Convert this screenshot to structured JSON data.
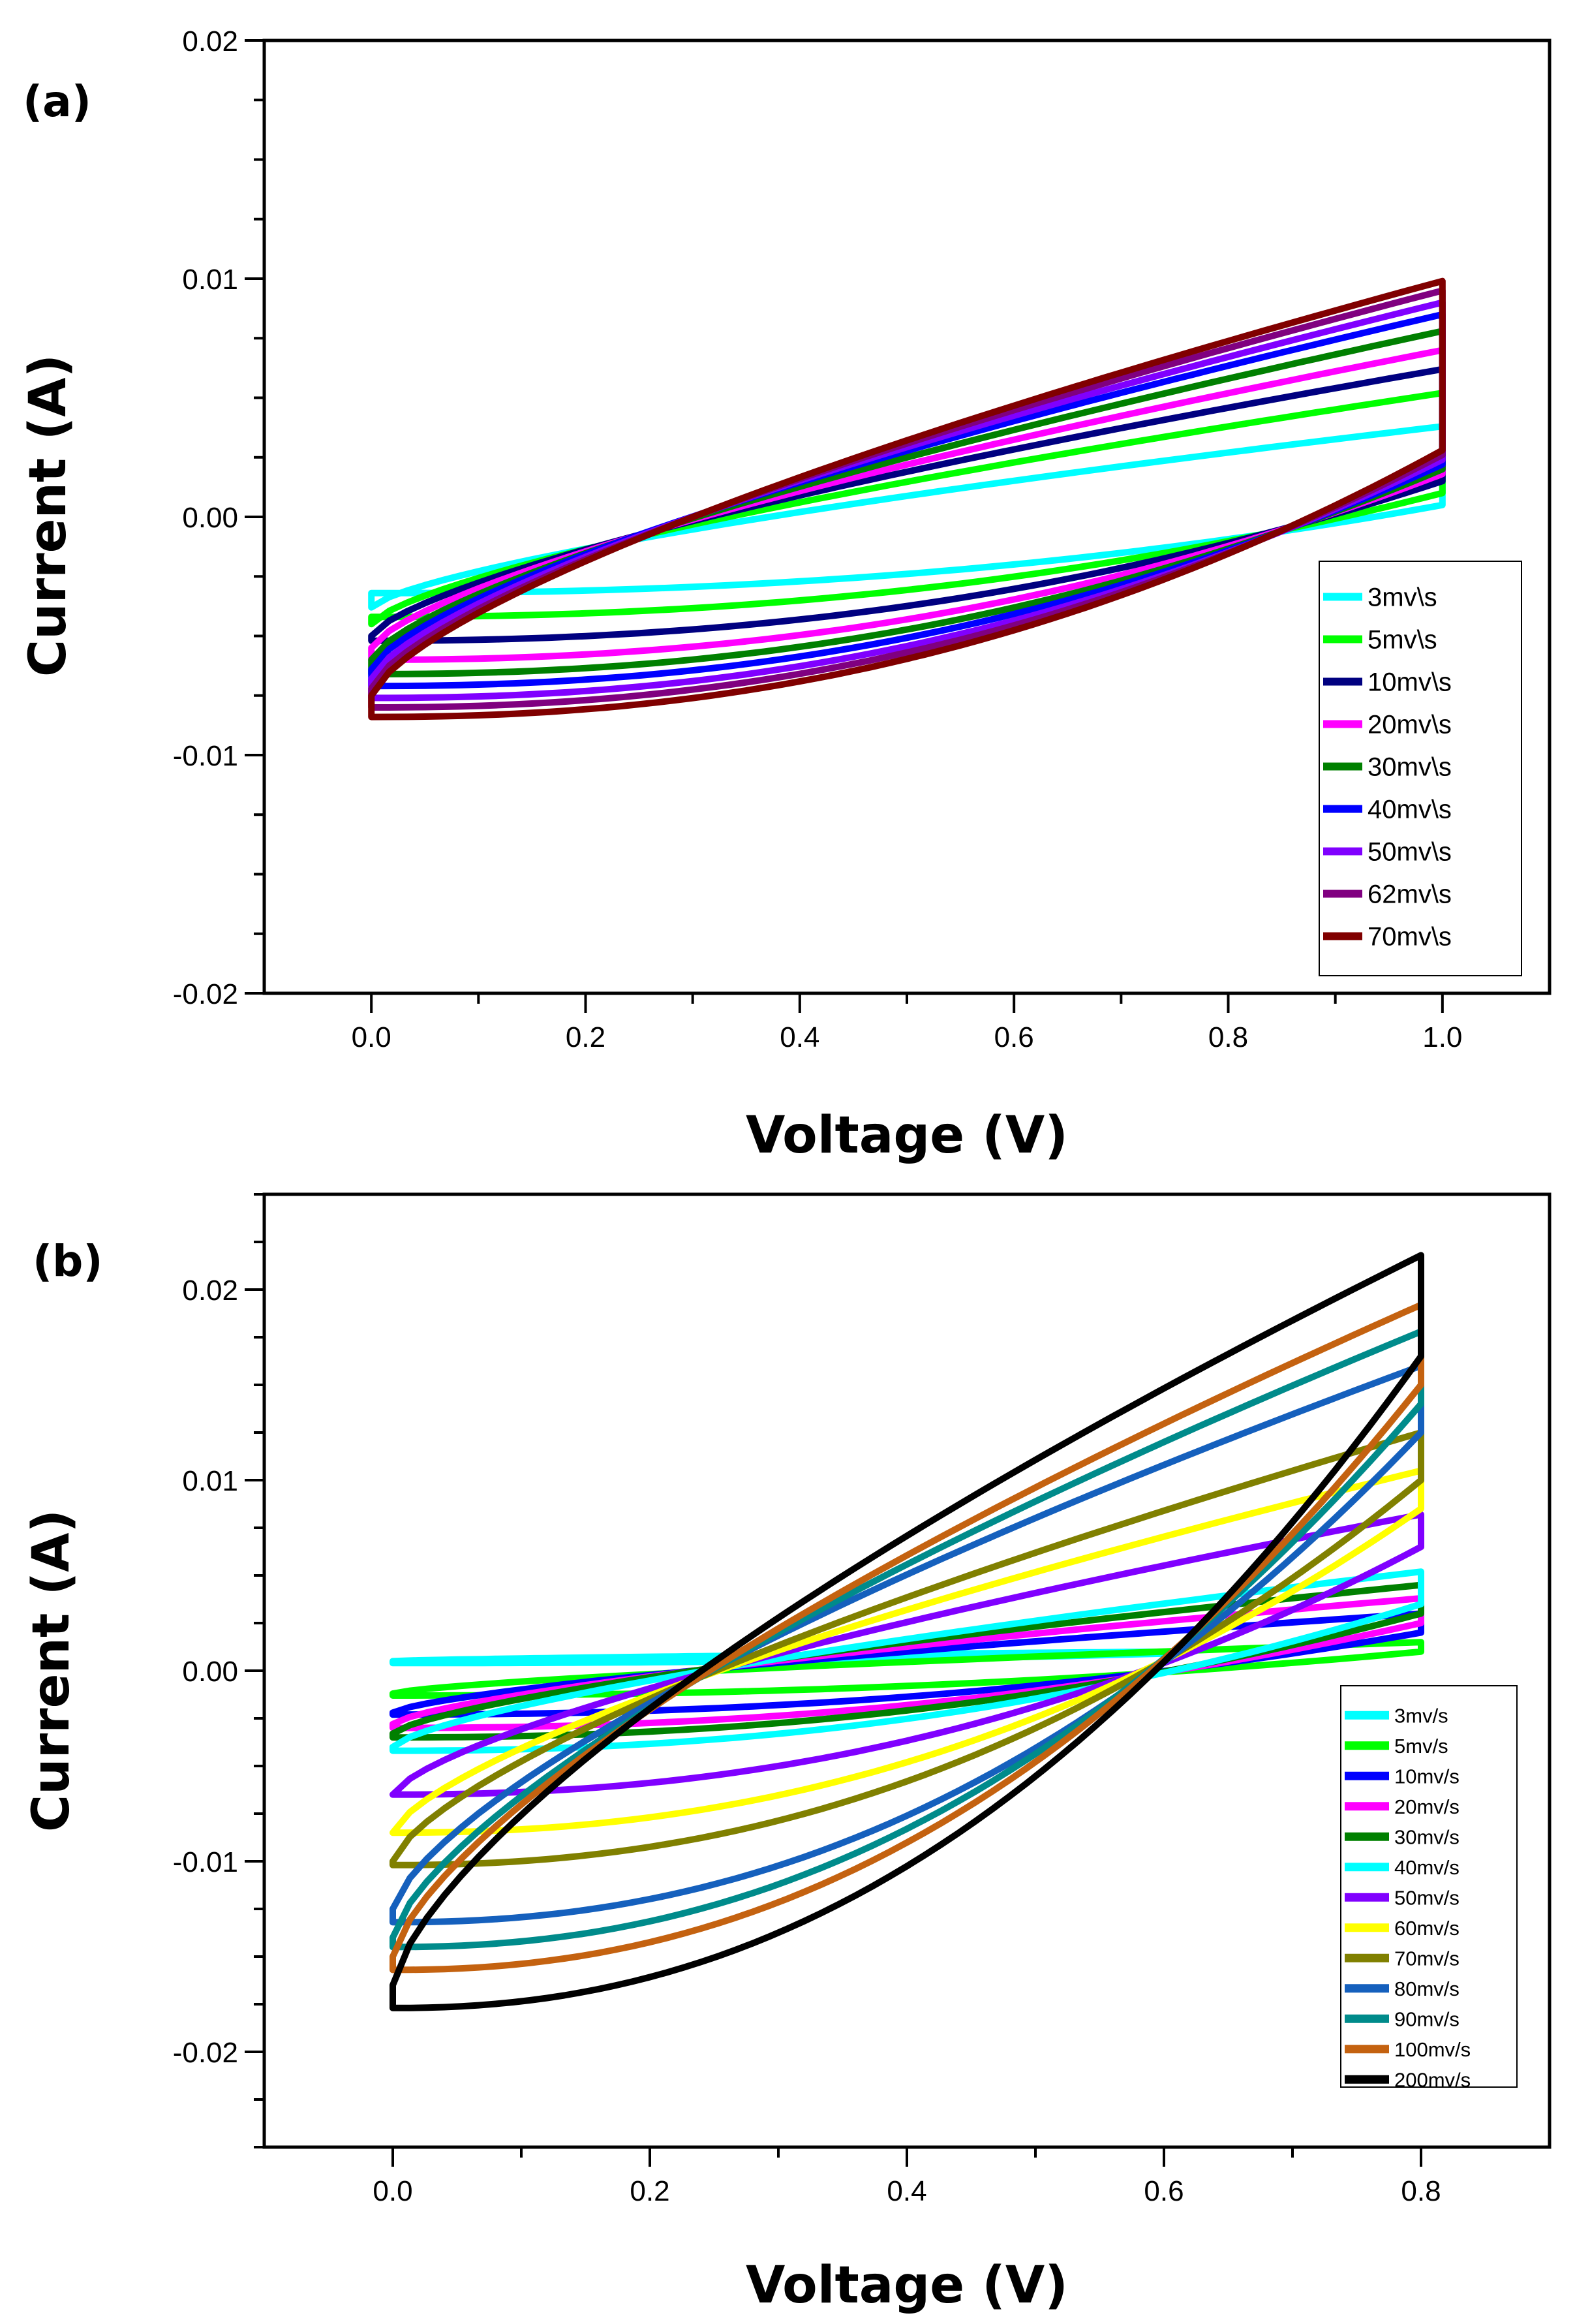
{
  "chart_data": [
    {
      "type": "line",
      "panel_label": "(a)",
      "xlabel": "Voltage (V)",
      "ylabel": "Current (A)",
      "xlim": [
        -0.1,
        1.1
      ],
      "ylim": [
        -0.02,
        0.02
      ],
      "x_ticks": [
        0.0,
        0.2,
        0.4,
        0.6,
        0.8,
        1.0
      ],
      "x_tick_labels": [
        "0.0",
        "0.2",
        "0.4",
        "0.6",
        "0.8",
        "1.0"
      ],
      "y_ticks": [
        -0.02,
        -0.01,
        0.0,
        0.01,
        0.02
      ],
      "y_tick_labels": [
        "-0.02",
        "-0.01",
        "0.00",
        "0.01",
        "0.02"
      ],
      "grid": false,
      "legend_position": "right",
      "series": [
        {
          "name": "3mv\\s",
          "color": "#00FFFF",
          "v_min": 0.0,
          "v_max": 1.0,
          "upper_start": -0.0038,
          "upper_end": 0.0038,
          "lower_start": -0.0032,
          "lower_end": 0.0005
        },
        {
          "name": "5mv\\s",
          "color": "#00FF00",
          "v_min": 0.0,
          "v_max": 1.0,
          "upper_start": -0.0045,
          "upper_end": 0.0052,
          "lower_start": -0.0042,
          "lower_end": 0.001
        },
        {
          "name": "10mv\\s",
          "color": "#000080",
          "v_min": 0.0,
          "v_max": 1.0,
          "upper_start": -0.005,
          "upper_end": 0.0062,
          "lower_start": -0.0052,
          "lower_end": 0.0015
        },
        {
          "name": "20mv\\s",
          "color": "#FF00FF",
          "v_min": 0.0,
          "v_max": 1.0,
          "upper_start": -0.0055,
          "upper_end": 0.007,
          "lower_start": -0.006,
          "lower_end": 0.0018
        },
        {
          "name": "30mv\\s",
          "color": "#008000",
          "v_min": 0.0,
          "v_max": 1.0,
          "upper_start": -0.006,
          "upper_end": 0.0078,
          "lower_start": -0.0066,
          "lower_end": 0.002
        },
        {
          "name": "40mv\\s",
          "color": "#0000FF",
          "v_min": 0.0,
          "v_max": 1.0,
          "upper_start": -0.0064,
          "upper_end": 0.0085,
          "lower_start": -0.0071,
          "lower_end": 0.0022
        },
        {
          "name": "50mv\\s",
          "color": "#8000FF",
          "v_min": 0.0,
          "v_max": 1.0,
          "upper_start": -0.0068,
          "upper_end": 0.009,
          "lower_start": -0.0076,
          "lower_end": 0.0024
        },
        {
          "name": "62mv\\s",
          "color": "#800080",
          "v_min": 0.0,
          "v_max": 1.0,
          "upper_start": -0.0072,
          "upper_end": 0.0095,
          "lower_start": -0.008,
          "lower_end": 0.0026
        },
        {
          "name": "70mv\\s",
          "color": "#800000",
          "v_min": 0.0,
          "v_max": 1.0,
          "upper_start": -0.0075,
          "upper_end": 0.0099,
          "lower_start": -0.0084,
          "lower_end": 0.0028
        }
      ]
    },
    {
      "type": "line",
      "panel_label": "(b)",
      "xlabel": "Voltage (V)",
      "ylabel": "Current (A)",
      "xlim": [
        -0.1,
        0.9
      ],
      "ylim": [
        -0.025,
        0.025
      ],
      "x_ticks": [
        0.0,
        0.2,
        0.4,
        0.6,
        0.8
      ],
      "x_tick_labels": [
        "0.0",
        "0.2",
        "0.4",
        "0.6",
        "0.8"
      ],
      "y_ticks": [
        -0.02,
        -0.01,
        0.0,
        0.01,
        0.02
      ],
      "y_tick_labels": [
        "-0.02",
        "-0.01",
        "0.00",
        "0.01",
        "0.02"
      ],
      "grid": false,
      "legend_position": "right",
      "series": [
        {
          "name": "3mv/s",
          "color": "#00FFFF",
          "v_min": 0.0,
          "v_max": 0.6,
          "upper_start": 0.0005,
          "upper_end": 0.001,
          "lower_start": 0.0004,
          "lower_end": 0.0009
        },
        {
          "name": "5mv/s",
          "color": "#00FF00",
          "v_min": 0.0,
          "v_max": 0.8,
          "upper_start": -0.0012,
          "upper_end": 0.0015,
          "lower_start": -0.0013,
          "lower_end": 0.001
        },
        {
          "name": "10mv/s",
          "color": "#0000FF",
          "v_min": 0.0,
          "v_max": 0.8,
          "upper_start": -0.0022,
          "upper_end": 0.003,
          "lower_start": -0.0023,
          "lower_end": 0.002
        },
        {
          "name": "20mv/s",
          "color": "#FF00FF",
          "v_min": 0.0,
          "v_max": 0.8,
          "upper_start": -0.0028,
          "upper_end": 0.0038,
          "lower_start": -0.003,
          "lower_end": 0.0025
        },
        {
          "name": "30mv/s",
          "color": "#008000",
          "v_min": 0.0,
          "v_max": 0.8,
          "upper_start": -0.0033,
          "upper_end": 0.0045,
          "lower_start": -0.0035,
          "lower_end": 0.003
        },
        {
          "name": "40mv/s",
          "color": "#00FFFF",
          "v_min": 0.0,
          "v_max": 0.8,
          "upper_start": -0.004,
          "upper_end": 0.0052,
          "lower_start": -0.0042,
          "lower_end": 0.0035
        },
        {
          "name": "50mv/s",
          "color": "#8000FF",
          "v_min": 0.0,
          "v_max": 0.8,
          "upper_start": -0.0065,
          "upper_end": 0.0082,
          "lower_start": -0.0065,
          "lower_end": 0.0065
        },
        {
          "name": "60mv/s",
          "color": "#FFFF00",
          "v_min": 0.0,
          "v_max": 0.8,
          "upper_start": -0.0085,
          "upper_end": 0.0105,
          "lower_start": -0.0085,
          "lower_end": 0.0085
        },
        {
          "name": "70mv/s",
          "color": "#808000",
          "v_min": 0.0,
          "v_max": 0.8,
          "upper_start": -0.01,
          "upper_end": 0.0125,
          "lower_start": -0.0102,
          "lower_end": 0.01
        },
        {
          "name": "80mv/s",
          "color": "#1560BD",
          "v_min": 0.0,
          "v_max": 0.8,
          "upper_start": -0.0125,
          "upper_end": 0.016,
          "lower_start": -0.0132,
          "lower_end": 0.0125
        },
        {
          "name": "90mv/s",
          "color": "#008B8B",
          "v_min": 0.0,
          "v_max": 0.8,
          "upper_start": -0.014,
          "upper_end": 0.0178,
          "lower_start": -0.0145,
          "lower_end": 0.014
        },
        {
          "name": "100mv/s",
          "color": "#C46210",
          "v_min": 0.0,
          "v_max": 0.8,
          "upper_start": -0.015,
          "upper_end": 0.0192,
          "lower_start": -0.0157,
          "lower_end": 0.015
        },
        {
          "name": "200mv/s",
          "color": "#000000",
          "v_min": 0.0,
          "v_max": 0.8,
          "upper_start": -0.0165,
          "upper_end": 0.0218,
          "lower_start": -0.0177,
          "lower_end": 0.0165
        }
      ]
    }
  ]
}
